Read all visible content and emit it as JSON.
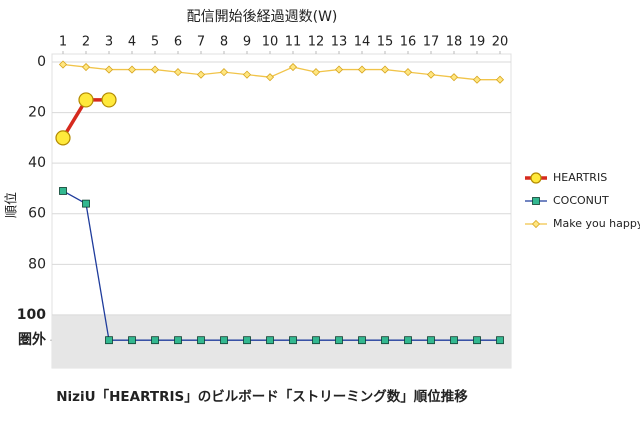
{
  "chart_data": {
    "type": "line",
    "x_axis_title": "配信開始後経過週数(W)",
    "y_axis_title": "順位",
    "caption": "NiziU「HEARTRIS」のビルボード「ストリーミング数」順位推移",
    "x": [
      1,
      2,
      3,
      4,
      5,
      6,
      7,
      8,
      9,
      10,
      11,
      12,
      13,
      14,
      15,
      16,
      17,
      18,
      19,
      20
    ],
    "xlim": [
      1,
      20
    ],
    "xticks": [
      1,
      2,
      3,
      4,
      5,
      6,
      7,
      8,
      9,
      10,
      11,
      12,
      13,
      14,
      15,
      16,
      17,
      18,
      19,
      20
    ],
    "ylim": [
      0,
      121
    ],
    "y_inverted": true,
    "yticks": [
      0,
      20,
      40,
      60,
      80,
      100,
      {
        "value": 110,
        "label": "圏外"
      }
    ],
    "shaded_range": [
      100,
      121
    ],
    "grid": true,
    "legend": "right",
    "series": [
      {
        "name": "HEARTRIS",
        "color": "#d62a1e",
        "marker": "circle",
        "marker_color": "#ffe93b",
        "values": [
          30,
          15,
          15,
          null,
          null,
          null,
          null,
          null,
          null,
          null,
          null,
          null,
          null,
          null,
          null,
          null,
          null,
          null,
          null,
          null
        ]
      },
      {
        "name": "COCONUT",
        "color": "#1f3c9c",
        "marker": "square",
        "marker_color": "#33b890",
        "values": [
          51,
          56,
          110,
          110,
          110,
          110,
          110,
          110,
          110,
          110,
          110,
          110,
          110,
          110,
          110,
          110,
          110,
          110,
          110,
          110
        ]
      },
      {
        "name": "Make you happy",
        "color": "#f1c449",
        "marker": "diamond",
        "marker_color": "#ffe680",
        "values": [
          1,
          2,
          3,
          3,
          3,
          4,
          5,
          4,
          5,
          6,
          2,
          4,
          3,
          3,
          3,
          4,
          5,
          6,
          7,
          7
        ]
      }
    ]
  }
}
